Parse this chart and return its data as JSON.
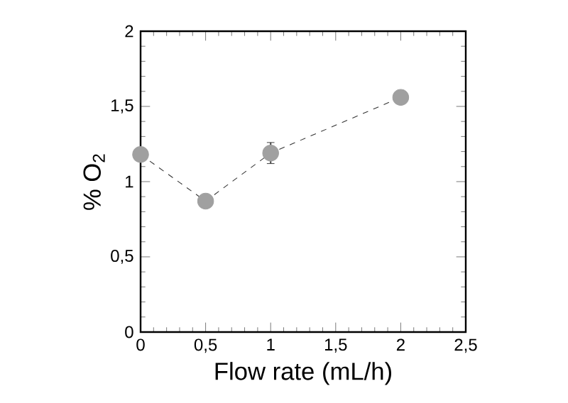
{
  "chart_data": {
    "type": "line",
    "xlabel": "Flow rate (mL/h)",
    "ylabel": "% O$_{2}$",
    "x": [
      0,
      0.5,
      1,
      2
    ],
    "series": [
      {
        "color": "#a0a0a0",
        "values": [
          1.18,
          0.87,
          1.19,
          1.56
        ],
        "errors": [
          null,
          null,
          0.07,
          null
        ]
      }
    ],
    "xlim": [
      0,
      2.5
    ],
    "ylim": [
      0,
      2
    ],
    "xticks": [
      0,
      {
        "value": 0.5,
        "label": "0,5"
      },
      1,
      {
        "value": 1.5,
        "label": "1,5"
      },
      2,
      {
        "value": 2.5,
        "label": "2,5"
      }
    ],
    "yticks": [
      0,
      {
        "value": 0.5,
        "label": "0,5"
      },
      1,
      {
        "value": 1.5,
        "label": "1,5"
      },
      2
    ],
    "marker": "circle",
    "line_style": "dashed"
  }
}
